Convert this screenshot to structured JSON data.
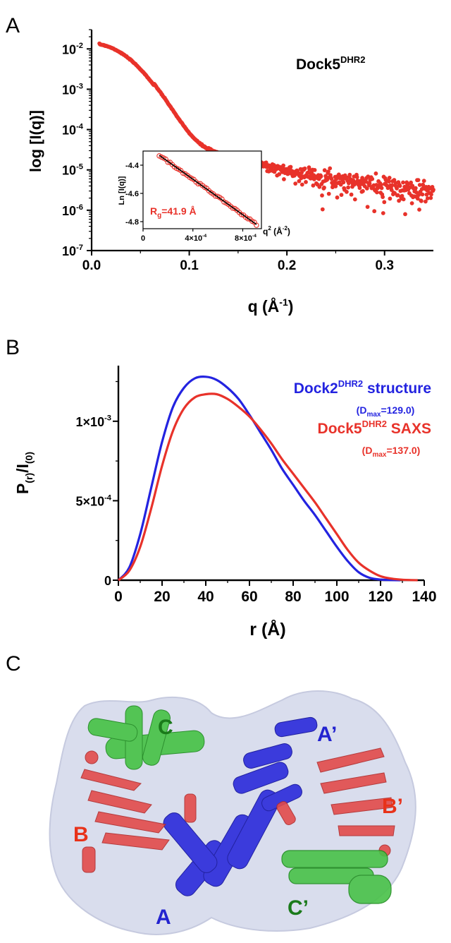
{
  "panels": {
    "a": "A",
    "b": "B",
    "c": "C"
  },
  "chart_data": [
    {
      "type": "scatter",
      "panel": "A",
      "title_main": "Dock5",
      "title_sup": "DHR2",
      "ylabel": "log [I(q)]",
      "xlabel_main": "q (Å",
      "xlabel_sup": "-1",
      "xlabel_end": ")",
      "xlim": [
        0.0,
        0.35
      ],
      "ylog": true,
      "ylim": [
        1e-07,
        0.03
      ],
      "x_ticks": [
        {
          "v": 0.0,
          "label": "0.0"
        },
        {
          "v": 0.1,
          "label": "0.1"
        },
        {
          "v": 0.2,
          "label": "0.2"
        },
        {
          "v": 0.3,
          "label": "0.3"
        }
      ],
      "y_ticks": [
        {
          "exp": -2,
          "base": "10",
          "sup": "-2"
        },
        {
          "exp": -3,
          "base": "10",
          "sup": "-3"
        },
        {
          "exp": -4,
          "base": "10",
          "sup": "-4"
        },
        {
          "exp": -5,
          "base": "10",
          "sup": "-5"
        },
        {
          "exp": -6,
          "base": "10",
          "sup": "-6"
        },
        {
          "exp": -7,
          "base": "10",
          "sup": "-7"
        }
      ],
      "marker_color": "#e8322a",
      "curve_model": {
        "I0": 0.0135,
        "Rg": 41.9,
        "tail": 2.8e-06,
        "q_fit_until": 0.064
      },
      "scatter_q_start": 0.008,
      "scatter_q_end": 0.35,
      "scatter_points": 640,
      "inset": {
        "type": "scatter+line",
        "ylabel": "Ln [I(q)]",
        "xlabel_main": "q",
        "xlabel_sup": "2",
        "xlabel_unit": " (Å",
        "xlabel_unit_sup": "-2",
        "xlabel_end": ")",
        "xlim": [
          0,
          0.00095
        ],
        "ylim": [
          -4.85,
          -4.3
        ],
        "x_ticks": [
          {
            "v": 0,
            "label": "0"
          },
          {
            "v": 0.0004,
            "label": "4×10",
            "sup": "-4"
          },
          {
            "v": 0.0008,
            "label": "8×10",
            "sup": "-4"
          }
        ],
        "y_ticks": [
          {
            "v": -4.4,
            "label": "-4.4"
          },
          {
            "v": -4.6,
            "label": "-4.6"
          },
          {
            "v": -4.8,
            "label": "-4.8"
          }
        ],
        "fit_line": {
          "x": [
            0.00013,
            0.00091
          ],
          "y": [
            -4.33,
            -4.82
          ]
        },
        "points_x_start": 0.00013,
        "points_x_end": 0.00091,
        "points_count": 46,
        "annotation_main": "R",
        "annotation_sub": "g",
        "annotation_rest": "=41.9 Å"
      }
    },
    {
      "type": "line",
      "panel": "B",
      "ylabel_main": "P",
      "ylabel_sub1": "(r)",
      "ylabel_mid": "/I",
      "ylabel_sub2": "(0)",
      "xlabel": "r (Å)",
      "xlim": [
        0,
        140
      ],
      "ylim": [
        0,
        0.00135
      ],
      "x_ticks": [
        {
          "v": 0,
          "label": "0"
        },
        {
          "v": 20,
          "label": "20"
        },
        {
          "v": 40,
          "label": "40"
        },
        {
          "v": 60,
          "label": "60"
        },
        {
          "v": 80,
          "label": "80"
        },
        {
          "v": 100,
          "label": "100"
        },
        {
          "v": 120,
          "label": "120"
        },
        {
          "v": 140,
          "label": "140"
        }
      ],
      "y_ticks": [
        {
          "v": 0,
          "label": "0"
        },
        {
          "v": 0.0005,
          "label": "5×10",
          "sup": "-4"
        },
        {
          "v": 0.001,
          "label": "1×10",
          "sup": "-3"
        }
      ],
      "series": [
        {
          "name_main": "Dock2",
          "name_sup": "DHR2",
          "name_rest": " structure",
          "dmax_pre": "(D",
          "dmax_sub": "max",
          "dmax_post": "=129.0)",
          "color": "#2323e0",
          "x": [
            0,
            5,
            10,
            15,
            20,
            25,
            30,
            35,
            40,
            45,
            50,
            55,
            60,
            65,
            70,
            75,
            80,
            85,
            90,
            95,
            100,
            105,
            110,
            115,
            120,
            125,
            129
          ],
          "y": [
            0,
            8e-05,
            0.00029,
            0.00058,
            0.00087,
            0.00109,
            0.00121,
            0.00127,
            0.00128,
            0.00126,
            0.00121,
            0.00114,
            0.00104,
            0.00093,
            0.00082,
            0.0007,
            0.0006,
            0.0005,
            0.00041,
            0.00031,
            0.00021,
            0.00012,
            5e-05,
            1.5e-05,
            4e-06,
            1e-06,
            0
          ]
        },
        {
          "name_main": "Dock5",
          "name_sup": "DHR2",
          "name_rest": " SAXS",
          "dmax_pre": "(D",
          "dmax_sub": "max",
          "dmax_post": "=137.0)",
          "color": "#e8322a",
          "x": [
            0,
            5,
            10,
            15,
            20,
            25,
            30,
            35,
            40,
            45,
            50,
            55,
            60,
            65,
            70,
            75,
            80,
            85,
            90,
            95,
            100,
            105,
            110,
            115,
            120,
            125,
            130,
            137
          ],
          "y": [
            0,
            6e-05,
            0.00021,
            0.00045,
            0.00072,
            0.00094,
            0.00108,
            0.00115,
            0.00117,
            0.00117,
            0.00114,
            0.00109,
            0.00103,
            0.00095,
            0.00086,
            0.00076,
            0.00067,
            0.00058,
            0.00049,
            0.00039,
            0.00029,
            0.00019,
            0.00011,
            6e-05,
            2.5e-05,
            1e-05,
            3e-06,
            0
          ]
        }
      ]
    }
  ],
  "structure": {
    "labels": [
      {
        "id": "c",
        "text": "C",
        "color": "#1a7a1a"
      },
      {
        "id": "a-prime",
        "text": "A’",
        "color": "#2323d0"
      },
      {
        "id": "b",
        "text": "B",
        "color": "#e8321a"
      },
      {
        "id": "b-prime",
        "text": "B’",
        "color": "#e8321a"
      },
      {
        "id": "a",
        "text": "A",
        "color": "#2323d0"
      },
      {
        "id": "c-prime",
        "text": "C’",
        "color": "#1a7a1a"
      }
    ],
    "colors": {
      "surface": "#d8dced",
      "blue": "#3b3bdc",
      "red": "#e24b4b",
      "green": "#3fbf3f"
    }
  }
}
